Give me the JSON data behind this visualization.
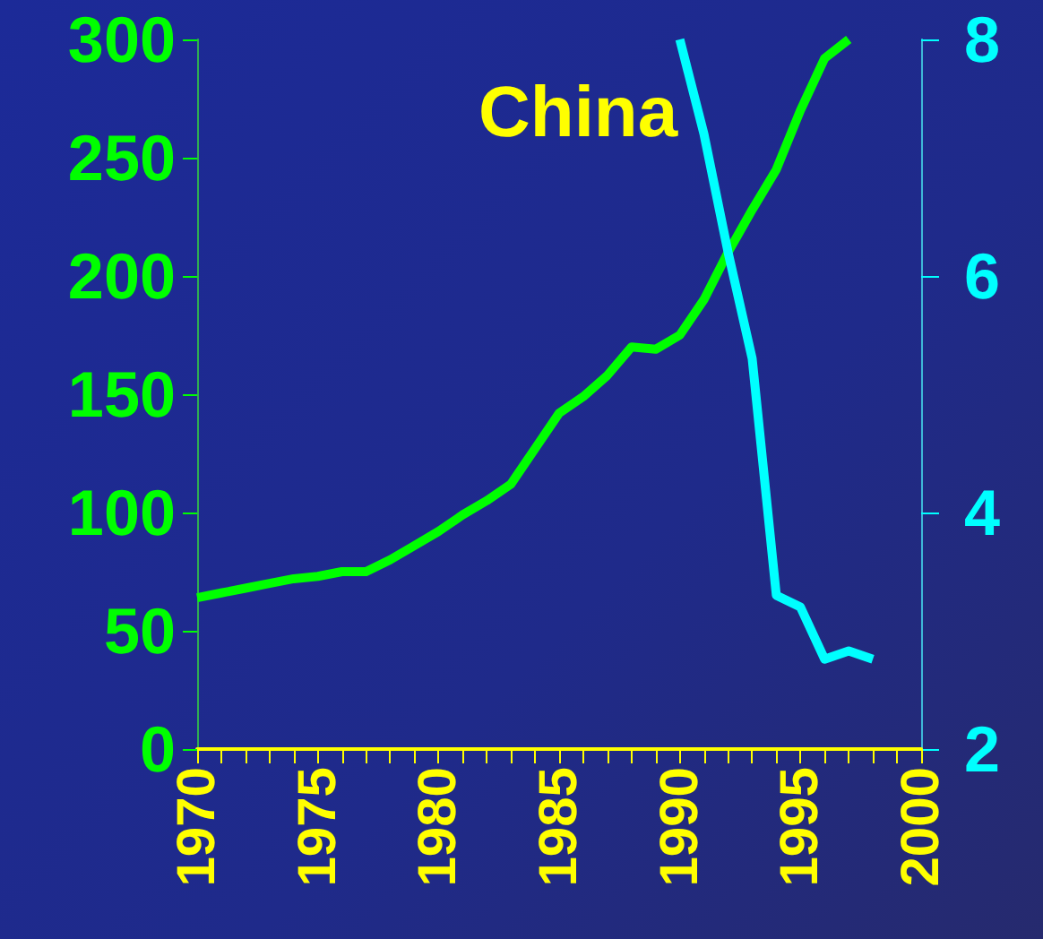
{
  "chart_data": {
    "type": "line",
    "title": "China",
    "x": [
      1970,
      1971,
      1972,
      1973,
      1974,
      1975,
      1976,
      1977,
      1978,
      1979,
      1980,
      1981,
      1982,
      1983,
      1984,
      1985,
      1986,
      1987,
      1988,
      1989,
      1990,
      1991,
      1992,
      1993,
      1994,
      1995,
      1996,
      1997
    ],
    "series": [
      {
        "color": "#00ff00",
        "values": [
          64,
          66,
          68,
          70,
          72,
          73,
          75,
          75,
          80,
          86,
          92,
          99,
          105,
          112,
          127,
          142,
          149,
          158,
          170,
          169,
          175,
          190,
          210,
          228,
          245,
          270,
          292,
          300
        ]
      },
      {
        "color": "#00ffff",
        "axis": "y2",
        "x": [
          1990,
          1991,
          1992,
          1993,
          1994,
          1995,
          1996,
          1997,
          1998
        ],
        "values": [
          8.0,
          7.2,
          6.2,
          5.3,
          3.3,
          3.2,
          2.76,
          2.83,
          2.76
        ]
      }
    ],
    "xlim": [
      1970,
      2000
    ],
    "xticks": [
      1970,
      {
        "value": 1971,
        "label": null
      },
      {
        "value": 1972,
        "label": null
      },
      {
        "value": 1973,
        "label": null
      },
      {
        "value": 1974,
        "label": null
      },
      1975,
      {
        "value": 1976,
        "label": null
      },
      {
        "value": 1977,
        "label": null
      },
      {
        "value": 1978,
        "label": null
      },
      {
        "value": 1979,
        "label": null
      },
      1980,
      {
        "value": 1981,
        "label": null
      },
      {
        "value": 1982,
        "label": null
      },
      {
        "value": 1983,
        "label": null
      },
      {
        "value": 1984,
        "label": null
      },
      1985,
      {
        "value": 1986,
        "label": null
      },
      {
        "value": 1987,
        "label": null
      },
      {
        "value": 1988,
        "label": null
      },
      {
        "value": 1989,
        "label": null
      },
      1990,
      {
        "value": 1991,
        "label": null
      },
      {
        "value": 1992,
        "label": null
      },
      {
        "value": 1993,
        "label": null
      },
      {
        "value": 1994,
        "label": null
      },
      1995,
      {
        "value": 1996,
        "label": null
      },
      {
        "value": 1997,
        "label": null
      },
      {
        "value": 1998,
        "label": null
      },
      {
        "value": 1999,
        "label": null
      },
      2000
    ],
    "ylim": [
      0,
      300
    ],
    "yticks": [
      0,
      50,
      100,
      150,
      200,
      250,
      300
    ],
    "y2lim": [
      2,
      8
    ],
    "y2ticks": [
      2,
      4,
      6,
      8
    ],
    "grid": false,
    "marker": "none",
    "line_style": "solid"
  }
}
